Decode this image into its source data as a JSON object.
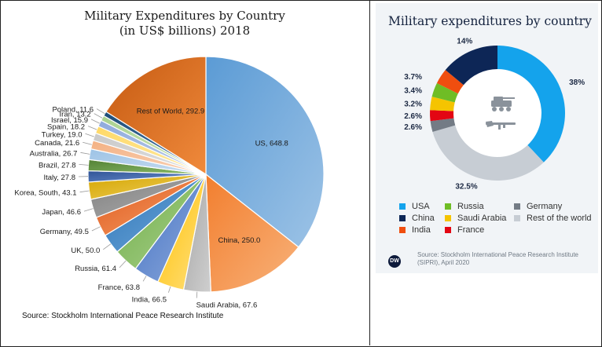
{
  "chart_data": [
    {
      "type": "pie",
      "title": "Military Expenditures by Country",
      "subtitle": "(in US$ billions) 2018",
      "source": "Source: Stockholm International Peace Research Institute",
      "slices": [
        {
          "label": "US",
          "value": 648.8,
          "display": "US, 648.8",
          "color": "#5b9bd5",
          "color2": "#9dc3e6"
        },
        {
          "label": "China",
          "value": 250.0,
          "display": "China, 250.0",
          "color": "#f27e2e",
          "color2": "#f8b27a"
        },
        {
          "label": "Saudi Arabia",
          "value": 67.6,
          "display": "Saudi Arabia, 67.6",
          "color": "#a5a5a5",
          "color2": "#cfcfcf"
        },
        {
          "label": "India",
          "value": 66.5,
          "display": "India, 66.5",
          "color": "#ffc000",
          "color2": "#ffe080"
        },
        {
          "label": "France",
          "value": 63.8,
          "display": "France, 63.8",
          "color": "#4472c4",
          "color2": "#8eaadb"
        },
        {
          "label": "Russia",
          "value": 61.4,
          "display": "Russia, 61.4",
          "color": "#70ad47",
          "color2": "#a9d18e"
        },
        {
          "label": "UK",
          "value": 50.0,
          "display": "UK, 50.0",
          "color": "#2e75b6",
          "color2": "#6fa8dc"
        },
        {
          "label": "Germany",
          "value": 49.5,
          "display": "Germany, 49.5",
          "color": "#e0581a",
          "color2": "#f4a06a"
        },
        {
          "label": "Japan",
          "value": 46.6,
          "display": "Japan, 46.6",
          "color": "#7f7f7f",
          "color2": "#b0b0b0"
        },
        {
          "label": "Korea, South",
          "value": 43.1,
          "display": "Korea, South, 43.1",
          "color": "#d4a500",
          "color2": "#f0d060"
        },
        {
          "label": "Italy",
          "value": 27.8,
          "display": "Italy, 27.8",
          "color": "#305496",
          "color2": "#6a8fcf"
        },
        {
          "label": "Brazil",
          "value": 27.8,
          "display": "Brazil, 27.8",
          "color": "#548235",
          "color2": "#8cbd6a"
        },
        {
          "label": "Australia",
          "value": 26.7,
          "display": "Australia, 26.7",
          "color": "#9dc3e6",
          "color2": "#c9ddf0"
        },
        {
          "label": "Canada",
          "value": 21.6,
          "display": "Canada, 21.6",
          "color": "#f4b183",
          "color2": "#f9d3b8"
        },
        {
          "label": "Turkey",
          "value": 19.0,
          "display": "Turkey, 19.0",
          "color": "#c9c9c9",
          "color2": "#e2e2e2"
        },
        {
          "label": "Spain",
          "value": 18.2,
          "display": "Spain, 18.2",
          "color": "#ffd966",
          "color2": "#ffeaa6"
        },
        {
          "label": "Israel",
          "value": 15.9,
          "display": "Israel, 15.9",
          "color": "#8faadc",
          "color2": "#bccdea"
        },
        {
          "label": "Iran",
          "value": 13.2,
          "display": "Iran, 13.2",
          "color": "#a9d18e",
          "color2": "#cde6bc"
        },
        {
          "label": "Poland",
          "value": 11.6,
          "display": "Poland, 11.6",
          "color": "#1f4e79",
          "color2": "#4a7cab"
        },
        {
          "label": "Rest of World",
          "value": 292.9,
          "display": "Rest of World, 292.9",
          "color": "#c55a11",
          "color2": "#f08a3c"
        }
      ]
    },
    {
      "type": "pie",
      "variant": "donut",
      "title": "Military expenditures by country",
      "source": "Source: Stockholm International Peace Research Institute (SIPRI), April 2020",
      "slices": [
        {
          "label": "USA",
          "value": 38,
          "display": "38%",
          "color": "#14a3ec"
        },
        {
          "label": "Rest of the world",
          "value": 32.5,
          "display": "32.5%",
          "color": "#c7cdd4"
        },
        {
          "label": "Germany",
          "value": 2.6,
          "display": "2.6%",
          "color": "#737b85"
        },
        {
          "label": "France",
          "value": 2.6,
          "display": "2.6%",
          "color": "#e30613"
        },
        {
          "label": "Saudi Arabia",
          "value": 3.2,
          "display": "3.2%",
          "color": "#f5c400"
        },
        {
          "label": "Russia",
          "value": 3.4,
          "display": "3.4%",
          "color": "#6fbd25"
        },
        {
          "label": "India",
          "value": 3.7,
          "display": "3.7%",
          "color": "#f04e0f"
        },
        {
          "label": "China",
          "value": 14,
          "display": "14%",
          "color": "#0d2656"
        }
      ],
      "legend": [
        "USA",
        "Russia",
        "Germany",
        "China",
        "Saudi Arabia",
        "Rest of the world",
        "India",
        "France"
      ],
      "logo_text": "DW",
      "icons": [
        "military-vehicle-icon",
        "rifle-icon"
      ]
    }
  ]
}
